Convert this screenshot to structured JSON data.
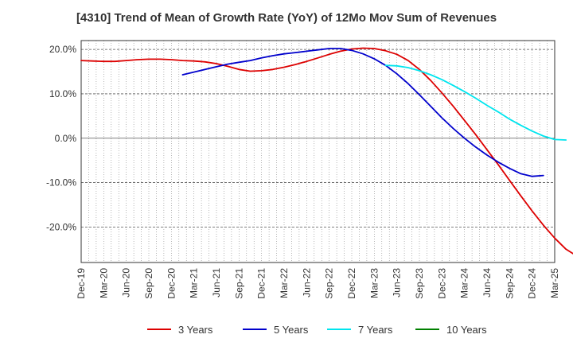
{
  "chart_data": {
    "type": "line",
    "title": "[4310]  Trend of Mean of Growth Rate (YoY) of 12Mo Mov Sum of Revenues",
    "xlabel": "",
    "ylabel": "",
    "ylim": [
      -28,
      22
    ],
    "grid": true,
    "legend_position": "bottom",
    "x_tick_labels": [
      "Dec-19",
      "Mar-20",
      "Jun-20",
      "Sep-20",
      "Dec-20",
      "Mar-21",
      "Jun-21",
      "Sep-21",
      "Dec-21",
      "Mar-22",
      "Jun-22",
      "Sep-22",
      "Dec-22",
      "Mar-23",
      "Jun-23",
      "Sep-23",
      "Dec-23",
      "Mar-24",
      "Jun-24",
      "Sep-24",
      "Dec-24",
      "Mar-25"
    ],
    "y_ticks": [
      20,
      10,
      0,
      -10,
      -20
    ],
    "y_tick_labels": [
      "20.0%",
      "10.0%",
      "0.0%",
      "-10.0%",
      "-20.0%"
    ],
    "series": [
      {
        "name": "3 Years",
        "color": "#dd0000",
        "start_index": 0,
        "values": [
          17.5,
          17.4,
          17.3,
          17.3,
          17.5,
          17.7,
          17.8,
          17.8,
          17.7,
          17.5,
          17.4,
          17.2,
          16.8,
          16.2,
          15.5,
          15.1,
          15.2,
          15.5,
          16.0,
          16.6,
          17.3,
          18.1,
          18.9,
          19.6,
          20.1,
          20.3,
          20.2,
          19.7,
          18.9,
          17.5,
          15.5,
          13.0,
          10.2,
          7.2,
          4.0,
          0.8,
          -2.6,
          -6.0,
          -9.5,
          -13.0,
          -16.4,
          -19.6,
          -22.5,
          -25.0,
          -26.6,
          -26.8
        ]
      },
      {
        "name": "5 Years",
        "color": "#0000cc",
        "start_index": 9,
        "values": [
          14.3,
          14.9,
          15.5,
          16.1,
          16.7,
          17.1,
          17.5,
          18.1,
          18.6,
          19.0,
          19.3,
          19.6,
          19.9,
          20.2,
          20.2,
          19.8,
          19.0,
          17.9,
          16.4,
          14.5,
          12.3,
          9.8,
          7.2,
          4.6,
          2.2,
          0.0,
          -2.0,
          -3.8,
          -5.4,
          -6.8,
          -8.0,
          -8.6,
          -8.4
        ]
      },
      {
        "name": "7 Years",
        "color": "#00e5ee",
        "start_index": 27,
        "values": [
          16.4,
          16.3,
          15.9,
          15.2,
          14.3,
          13.2,
          11.9,
          10.5,
          9.0,
          7.4,
          5.9,
          4.3,
          2.9,
          1.6,
          0.5,
          -0.3,
          -0.4
        ]
      },
      {
        "name": "10 Years",
        "color": "#008000",
        "start_index": 0,
        "values": []
      }
    ]
  }
}
